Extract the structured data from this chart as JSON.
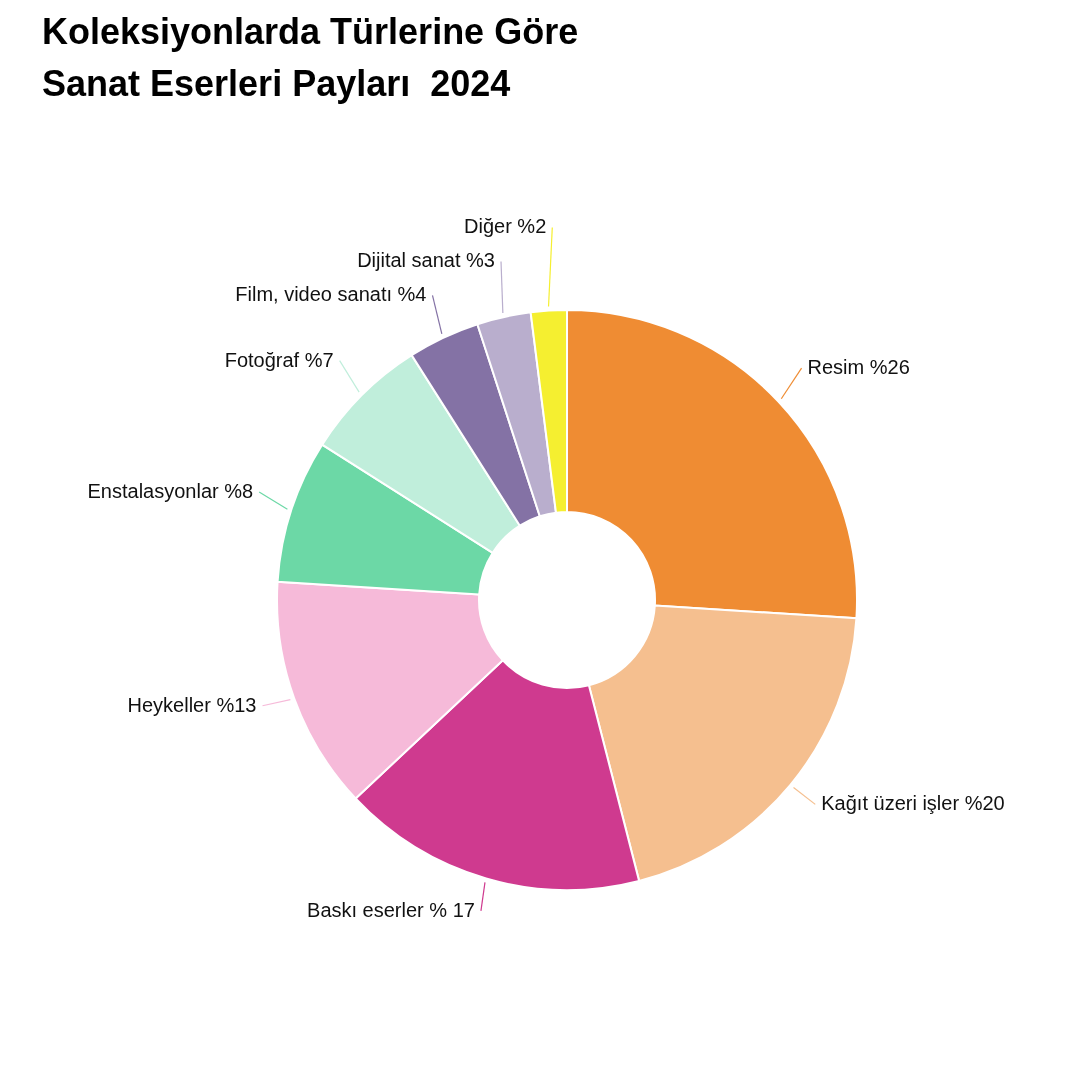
{
  "chart_data": {
    "type": "donut",
    "title": "Koleksiyonlarda Türlerine Göre\nSanat Eserleri Payları  2024",
    "categories": [
      "Resim",
      "Kağıt üzeri işler",
      "Baskı eserler",
      "Heykeller",
      "Enstalasyonlar",
      "Fotoğraf",
      "Film, video sanatı",
      "Dijital sanat",
      "Diğer"
    ],
    "values": [
      26,
      20,
      17,
      13,
      8,
      7,
      4,
      3,
      2
    ],
    "colors": [
      "#ef8c33",
      "#f5bf8f",
      "#cf3a8f",
      "#f6bad9",
      "#6cd8a6",
      "#c0eedb",
      "#8472a5",
      "#b9aecd",
      "#f5ef30"
    ],
    "value_labels": [
      "%26",
      "%20",
      "% 17",
      "%13",
      "%8",
      "%7",
      "%4",
      "%3",
      "%2"
    ]
  }
}
